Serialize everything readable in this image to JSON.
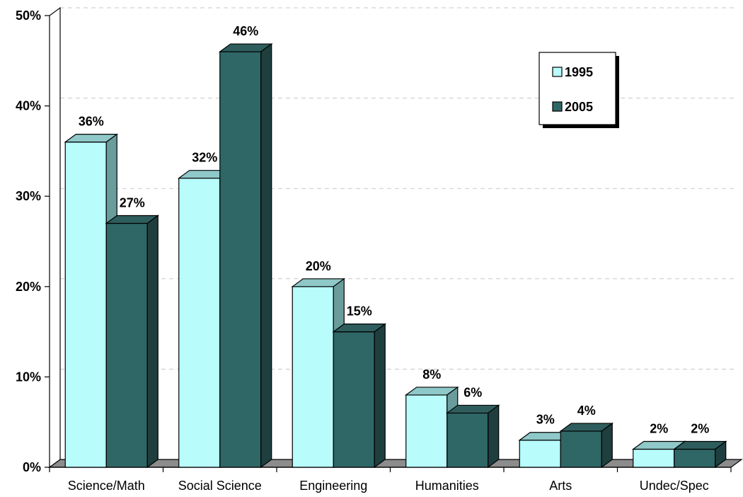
{
  "chart_data": {
    "type": "bar",
    "categories": [
      "Science/Math",
      "Social Science",
      "Engineering",
      "Humanities",
      "Arts",
      "Undec/Spec"
    ],
    "series": [
      {
        "name": "1995",
        "values": [
          36,
          32,
          20,
          8,
          3,
          2
        ],
        "color": "#b8fcfc",
        "top_color": "#8fc8c8",
        "side_color": "#6a9c9c"
      },
      {
        "name": "2005",
        "values": [
          27,
          46,
          15,
          6,
          4,
          2
        ],
        "color": "#2f6666",
        "top_color": "#2f5d5d",
        "side_color": "#1f3f3f"
      }
    ],
    "ylim": [
      0,
      50
    ],
    "yticks": [
      "0%",
      "10%",
      "20%",
      "30%",
      "40%",
      "50%"
    ],
    "value_suffix": "%",
    "grid": true,
    "legend_position": "top-right",
    "title": "",
    "xlabel": "",
    "ylabel": ""
  }
}
